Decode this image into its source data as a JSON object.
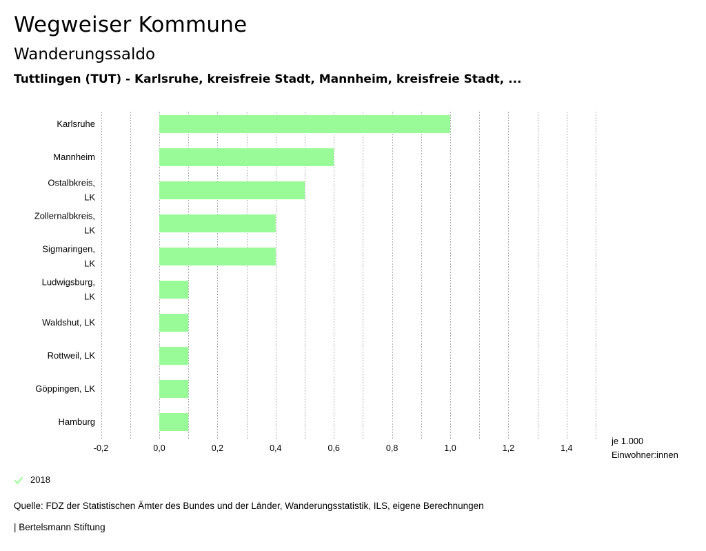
{
  "header": {
    "brand": "Wegweiser Kommune",
    "subtitle": "Wanderungssaldo",
    "region": "Tuttlingen (TUT) - Karlsruhe, kreisfreie Stadt, Mannheim, kreisfreie Stadt, ..."
  },
  "chart_data": {
    "type": "bar",
    "orientation": "horizontal",
    "categories": [
      [
        "Karlsruhe"
      ],
      [
        "Mannheim"
      ],
      [
        "Ostalbkreis,",
        "LK"
      ],
      [
        "Zollernalbkreis,",
        "LK"
      ],
      [
        "Sigmaringen,",
        "LK"
      ],
      [
        "Ludwigsburg,",
        "LK"
      ],
      [
        "Waldshut, LK"
      ],
      [
        "Rottweil, LK"
      ],
      [
        "Göppingen, LK"
      ],
      [
        "Hamburg"
      ]
    ],
    "series": [
      {
        "name": "2018",
        "values": [
          1.0,
          0.6,
          0.5,
          0.4,
          0.4,
          0.1,
          0.1,
          0.1,
          0.1,
          0.1
        ]
      }
    ],
    "xlim": [
      -0.2,
      1.5
    ],
    "xticks": [
      -0.2,
      0.0,
      0.2,
      0.4,
      0.6,
      0.8,
      1.0,
      1.2,
      1.4
    ],
    "xtick_labels": [
      "-0,2",
      "0,0",
      "0,2",
      "0,4",
      "0,6",
      "0,8",
      "1,0",
      "1,2",
      "1,4"
    ],
    "grid_minor_step": 0.1,
    "grid": true,
    "bar_color": "#98fb98",
    "grid_color": "#aaaaaa",
    "unit_label": [
      "je 1.000",
      "Einwohner:innen"
    ],
    "legend_position": "bottom-left"
  },
  "legend": {
    "label": "2018",
    "color": "#98fb98"
  },
  "source": "Quelle: FDZ der Statistischen Ämter des Bundes und der Länder, Wanderungsstatistik, ILS, eigene Berechnungen",
  "footer": "| Bertelsmann Stiftung"
}
